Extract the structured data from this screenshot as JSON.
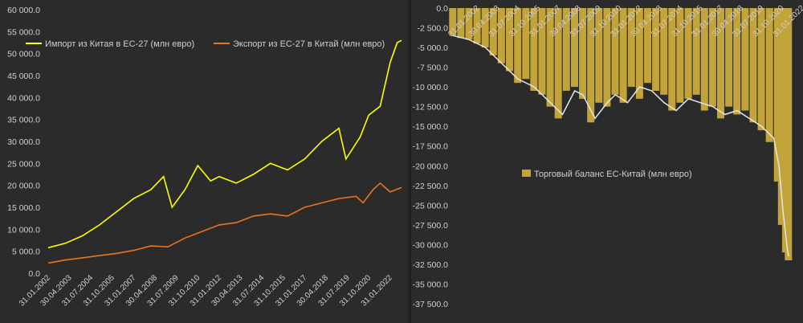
{
  "chart_data": [
    {
      "type": "line",
      "title": "",
      "ylim": [
        0,
        60000
      ],
      "yticks": [
        "0.0",
        "5 000.0",
        "10 000.0",
        "15 000.0",
        "20 000.0",
        "25 000.0",
        "30 000.0",
        "35 000.0",
        "40 000.0",
        "45 000.0",
        "50 000.0",
        "55 000.0",
        "60 000.0"
      ],
      "x_tick_labels": [
        "31.01.2002",
        "30.04.2003",
        "31.07.2004",
        "31.10.2005",
        "31.01.2007",
        "30.04.2008",
        "31.07.2009",
        "31.10.2010",
        "31.01.2012",
        "30.04.2013",
        "31.07.2014",
        "31.10.2015",
        "31.01.2017",
        "30.04.2018",
        "31.07.2019",
        "31.10.2020",
        "31.01.2022"
      ],
      "legend_position": "top-left",
      "grid": false,
      "series": [
        {
          "name": "Импорт из Китая в ЕС-27 (млн евро)",
          "color": "#ffff00",
          "x": [
            "2002-01-31",
            "2003-01-31",
            "2004-01-31",
            "2005-01-31",
            "2006-01-31",
            "2007-01-31",
            "2008-01-31",
            "2008-10-31",
            "2009-04-30",
            "2010-01-31",
            "2010-10-31",
            "2011-07-31",
            "2012-01-31",
            "2013-01-31",
            "2014-01-31",
            "2015-01-31",
            "2016-01-31",
            "2017-01-31",
            "2018-01-31",
            "2019-01-31",
            "2019-06-30",
            "2020-04-30",
            "2020-10-31",
            "2021-06-30",
            "2022-01-31",
            "2022-06-30",
            "2022-09-30"
          ],
          "values": [
            5800,
            6800,
            8500,
            11000,
            14000,
            17000,
            19000,
            22000,
            15000,
            19000,
            24500,
            21000,
            22000,
            20500,
            22500,
            25000,
            23500,
            26000,
            30000,
            33000,
            26000,
            31000,
            36000,
            38000,
            48000,
            52500,
            53000
          ]
        },
        {
          "name": "Экспорт из ЕС-27 в Китай (млн евро)",
          "color": "#e8741e",
          "x": [
            "2002-01-31",
            "2003-01-31",
            "2004-01-31",
            "2005-01-31",
            "2006-01-31",
            "2007-01-31",
            "2008-01-31",
            "2009-01-31",
            "2010-01-31",
            "2011-01-31",
            "2012-01-31",
            "2013-01-31",
            "2014-01-31",
            "2015-01-31",
            "2016-01-31",
            "2017-01-31",
            "2018-01-31",
            "2019-01-31",
            "2020-01-31",
            "2020-06-30",
            "2021-01-31",
            "2021-06-30",
            "2022-01-31",
            "2022-09-30"
          ],
          "values": [
            2300,
            3000,
            3500,
            4000,
            4500,
            5200,
            6200,
            6000,
            8000,
            9500,
            11000,
            11500,
            13000,
            13500,
            13000,
            15000,
            16000,
            17000,
            17500,
            16000,
            19000,
            20500,
            18500,
            19500
          ]
        }
      ]
    },
    {
      "type": "bar",
      "title": "",
      "ylim": [
        -37500,
        0
      ],
      "yticks": [
        "0.0",
        "-2 500.0",
        "-5 000.0",
        "-7 500.0",
        "-10 000.0",
        "-12 500.0",
        "-15 000.0",
        "-17 500.0",
        "-20 000.0",
        "-22 500.0",
        "-25 000.0",
        "-27 500.0",
        "-30 000.0",
        "-32 500.0",
        "-35 000.0",
        "-37 500.0"
      ],
      "x_tick_labels": [
        "31.01.2002",
        "30.04.2003",
        "31.07.2004",
        "31.10.2005",
        "31.01.2007",
        "30.04.2008",
        "31.07.2009",
        "31.10.2010",
        "31.01.2012",
        "30.04.2013",
        "31.07.2014",
        "31.10.2015",
        "31.01.2017",
        "30.04.2018",
        "31.07.2019",
        "31.10.2020",
        "31.01.2022"
      ],
      "legend_position": "center",
      "grid": false,
      "series": [
        {
          "name": "Торговый баланс ЕС-Китай (млн евро)",
          "color": "#c2a43a",
          "x": [
            "2002-01-31",
            "2002-07-31",
            "2003-01-31",
            "2003-07-31",
            "2004-01-31",
            "2004-07-31",
            "2005-01-31",
            "2005-07-31",
            "2006-01-31",
            "2006-07-31",
            "2007-01-31",
            "2007-07-31",
            "2008-01-31",
            "2008-07-31",
            "2009-01-31",
            "2009-07-31",
            "2010-01-31",
            "2010-07-31",
            "2011-01-31",
            "2011-07-31",
            "2012-01-31",
            "2012-07-31",
            "2013-01-31",
            "2013-07-31",
            "2014-01-31",
            "2014-07-31",
            "2015-01-31",
            "2015-07-31",
            "2016-01-31",
            "2016-07-31",
            "2017-01-31",
            "2017-07-31",
            "2018-01-31",
            "2018-07-31",
            "2019-01-31",
            "2019-07-31",
            "2020-01-31",
            "2020-07-31",
            "2021-01-31",
            "2021-07-31",
            "2022-01-31",
            "2022-04-30",
            "2022-07-31",
            "2022-09-30"
          ],
          "values": [
            -3500,
            -3800,
            -4000,
            -4500,
            -5000,
            -6000,
            -7000,
            -8000,
            -9500,
            -9000,
            -10500,
            -11000,
            -12500,
            -14000,
            -10500,
            -10000,
            -11500,
            -14500,
            -12000,
            -12500,
            -11000,
            -12000,
            -10000,
            -11500,
            -9500,
            -10500,
            -11000,
            -13000,
            -12000,
            -11500,
            -11000,
            -13000,
            -12500,
            -14000,
            -12500,
            -13500,
            -13000,
            -14500,
            -15500,
            -17000,
            -22000,
            -27500,
            -31000,
            -32000
          ]
        },
        {
          "name": "",
          "color": "#e6e6e6",
          "x": [
            "2002-01-31",
            "2003-01-31",
            "2004-01-31",
            "2005-01-31",
            "2006-01-31",
            "2007-01-31",
            "2008-01-31",
            "2008-10-31",
            "2009-07-31",
            "2010-01-31",
            "2010-10-31",
            "2011-07-31",
            "2012-01-31",
            "2012-10-31",
            "2013-07-31",
            "2014-04-30",
            "2015-01-31",
            "2015-10-31",
            "2016-07-31",
            "2017-04-30",
            "2018-01-31",
            "2018-10-31",
            "2019-07-31",
            "2020-04-30",
            "2021-01-31",
            "2021-10-31",
            "2022-02-28",
            "2022-05-31",
            "2022-08-31",
            "2022-09-30"
          ],
          "values": [
            -3500,
            -4000,
            -5000,
            -7000,
            -9000,
            -10000,
            -12000,
            -13500,
            -10500,
            -11000,
            -14000,
            -12000,
            -11000,
            -12000,
            -10000,
            -10500,
            -12000,
            -13000,
            -11500,
            -12000,
            -12500,
            -13500,
            -13000,
            -14000,
            -15000,
            -16500,
            -20000,
            -26000,
            -30500,
            -31500
          ]
        }
      ]
    }
  ]
}
